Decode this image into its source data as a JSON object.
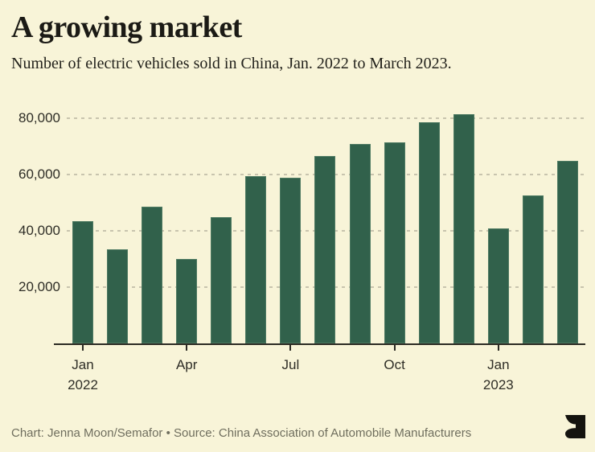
{
  "header": {
    "title": "A growing market",
    "subtitle": "Number of electric vehicles sold in China, Jan. 2022 to March 2023."
  },
  "footer": {
    "credit": "Chart: Jenna Moon/Semafor • Source: China Association of Automobile Manufacturers",
    "logo_icon": "semafor-logo"
  },
  "colors": {
    "background": "#f8f4d8",
    "bar": "#31614b",
    "bar_edge": "#4e7a62",
    "gridline": "#c8c4ae",
    "axis": "#2b2a23",
    "title_text": "#1b1a15",
    "axis_text": "#2e2d26",
    "footer_text": "#6f6e5e",
    "logo": "#14130e"
  },
  "chart_data": {
    "type": "bar",
    "title": "A growing market",
    "subtitle": "Number of electric vehicles sold in China, Jan. 2022 to March 2023.",
    "xlabel": "",
    "ylabel": "",
    "categories": [
      "Jan 2022",
      "Feb 2022",
      "Mar 2022",
      "Apr 2022",
      "May 2022",
      "Jun 2022",
      "Jul 2022",
      "Aug 2022",
      "Sep 2022",
      "Oct 2022",
      "Nov 2022",
      "Dec 2022",
      "Jan 2023",
      "Feb 2023",
      "Mar 2023"
    ],
    "values": [
      43500,
      33500,
      48500,
      30000,
      45000,
      59500,
      59000,
      66500,
      71000,
      71500,
      78500,
      81500,
      41000,
      52500,
      65000
    ],
    "ylim": [
      0,
      84000
    ],
    "yticks": [
      20000,
      40000,
      60000,
      80000
    ],
    "ytick_labels": [
      "20,000",
      "40,000",
      "60,000",
      "80,000"
    ],
    "xticks": [
      {
        "index": 0,
        "line1": "Jan",
        "line2": "2022"
      },
      {
        "index": 3,
        "line1": "Apr",
        "line2": ""
      },
      {
        "index": 6,
        "line1": "Jul",
        "line2": ""
      },
      {
        "index": 9,
        "line1": "Oct",
        "line2": ""
      },
      {
        "index": 12,
        "line1": "Jan",
        "line2": "2023"
      }
    ],
    "grid": "horizontal-dotted",
    "legend": "none",
    "bar_color": "#31614b"
  }
}
